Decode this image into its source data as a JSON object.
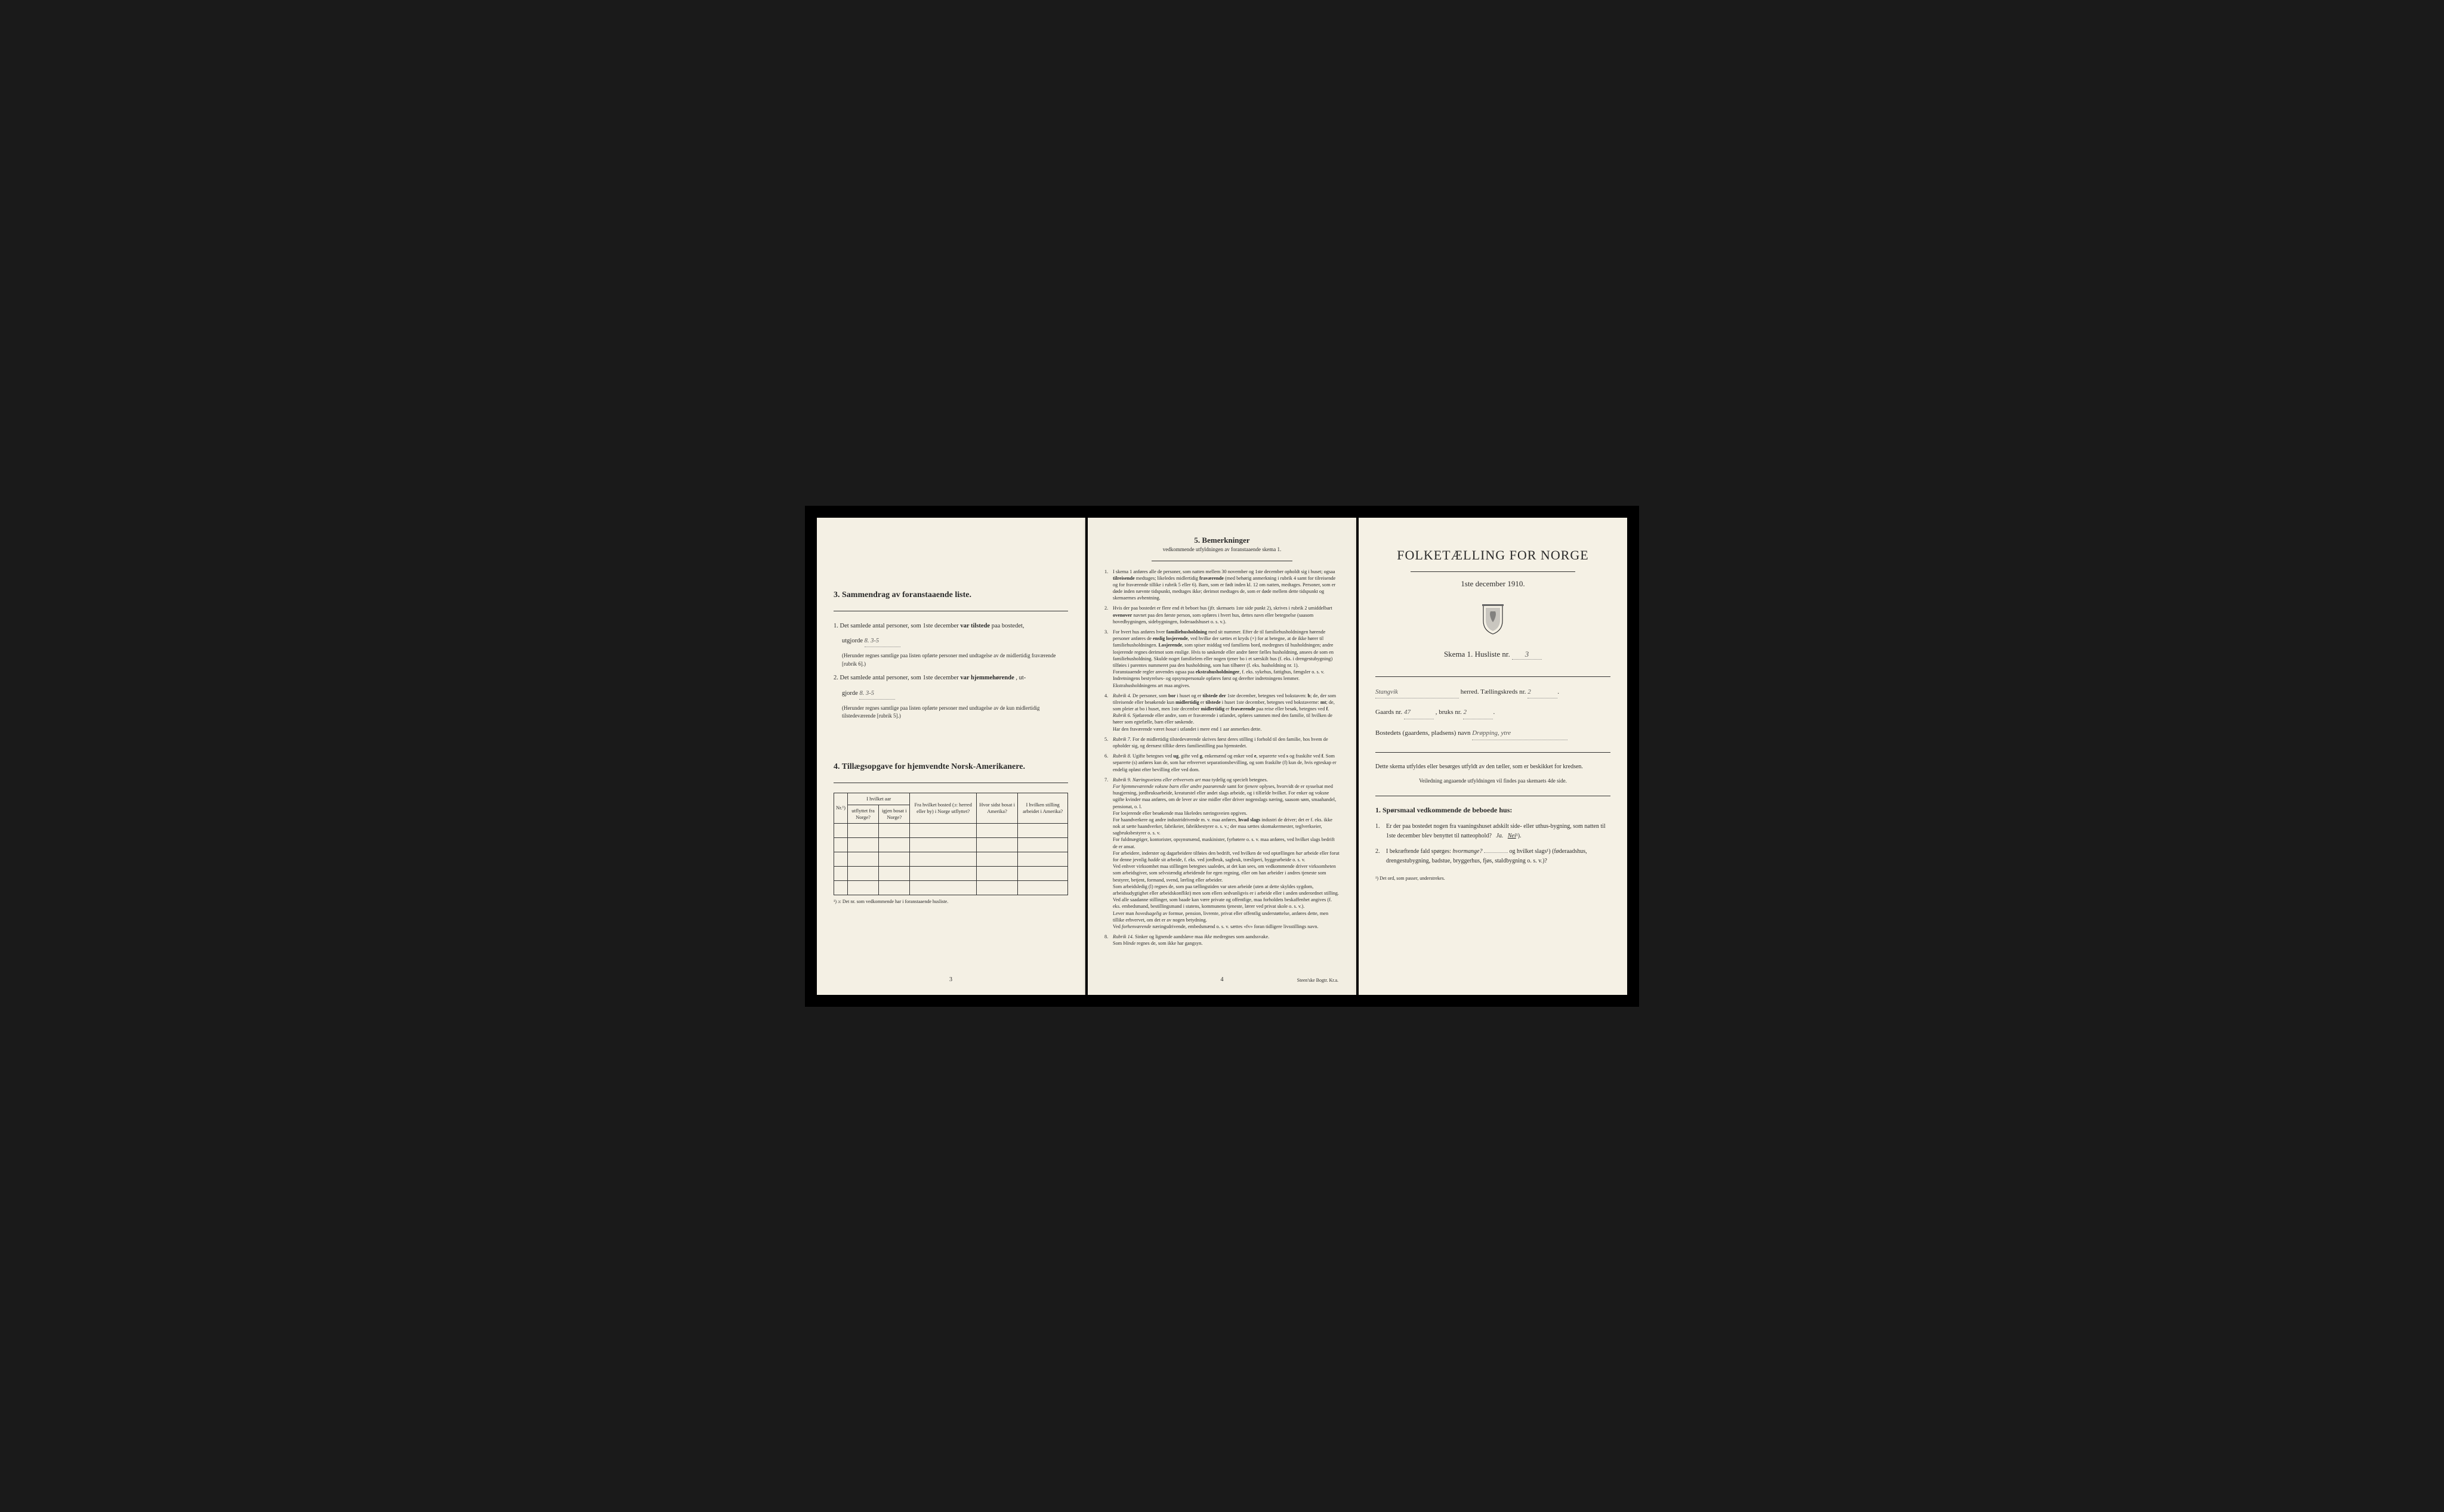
{
  "page_left": {
    "section3": {
      "title": "3.  Sammendrag av foranstaaende liste.",
      "item1_prefix": "1.  Det samlede antal personer, som 1ste december",
      "item1_bold": "var tilstede",
      "item1_suffix": "paa bostedet,",
      "item1_line2": "utgjorde",
      "item1_value": "8.  3-5",
      "item1_note": "(Herunder regnes samtlige paa listen opførte personer med undtagelse av de midlertidig fraværende [rubrik 6].)",
      "item2_prefix": "2.  Det samlede antal personer, som 1ste december",
      "item2_bold": "var hjemmehørende",
      "item2_suffix": ", ut-",
      "item2_line2": "gjorde",
      "item2_value": "8.  3-5",
      "item2_note": "(Herunder regnes samtlige paa listen opførte personer med undtagelse av de kun midlertidig tilstedeværende [rubrik 5].)"
    },
    "section4": {
      "title": "4.  Tillægsopgave for hjemvendte Norsk-Amerikanere.",
      "headers": {
        "col1": "Nr.¹)",
        "col2a": "I hvilket aar",
        "col2b": "utflyttet fra Norge?",
        "col2c": "igjen bosat i Norge?",
        "col3": "Fra hvilket bosted (ɔ: herred eller by) i Norge utflyttet?",
        "col4": "Hvor sidst bosat i Amerika?",
        "col5": "I hvilken stilling arbeidet i Amerika?"
      },
      "footnote": "¹) ɔ: Det nr. som vedkommende har i foranstaaende husliste.",
      "page_num": "3"
    }
  },
  "page_middle": {
    "title": "5.  Bemerkninger",
    "subtitle": "vedkommende utfyldningen av foranstaaende skema 1.",
    "rules": [
      {
        "n": "1.",
        "t": "I skema 1 anføres alle de personer, som natten mellem 30 november og 1ste december opholdt sig i huset; ogsaa <b>tilreisende</b> medtages; likeledes midlertidig <b>fraværende</b> (med behørig anmerkning i rubrik 4 samt for tilreisende og for fraværende tillike i rubrik 5 eller 6). Barn, som er født inden kl. 12 om natten, medtages. Personer, som er døde inden nævnte tidspunkt, medtages ikke; derimot medtages de, som er døde mellem dette tidspunkt og skemaernes avhentning."
      },
      {
        "n": "2.",
        "t": "Hvis der paa bostedet er flere end ét beboet hus (jfr. skemaets 1ste side punkt 2), skrives i rubrik 2 umiddelbart <b>ovenover</b> navnet paa den første person, som opføres i hvert hus, dettes navn eller betegnelse (saasom hovedbygningen, sidebygningen, foderaadshuset o. s. v.)."
      },
      {
        "n": "3.",
        "t": "For hvert hus anføres hver <b>familiehusholdning</b> med sit nummer. Efter de til familiehusholdningen hørende personer anføres de <b>enslig losjerende</b>, ved hvilke der sættes et kryds (×) for at betegne, at de ikke hører til familiehusholdningen. <b>Losjerende</b>, som spiser middag ved familiens bord, medregnes til husholdningen; andre losjerende regnes derimot som enslige. Hvis to søskende eller andre fører fælles husholdning, ansees de som en familiehusholdning. Skulde noget familielem eller nogen tjener bo i et særskilt hus (f. eks. i drengestubygning) tilføies i parentes nummeret paa den husholdning, som han tilhører (f. eks. husholdning nr. 1).<br>Foranstaaende regler anvendes ogsaa paa <b>ekstrahusholdninger</b>, f. eks. sykehus, fattighus, fængsler o. s. v. Indretningens bestyrelses- og opsynspersonale opføres først og derefter indretningens lemmer. Ekstrahusholdningens art maa angives."
      },
      {
        "n": "4.",
        "t": "<em>Rubrik 4.</em> De personer, som <b>bor</b> i huset og er <b>tilstede der</b> 1ste december, betegnes ved bokstaven: <b>b</b>; de, der som tilreisende eller besøkende kun <b>midlertidig</b> er <b>tilstede</b> i huset 1ste december, betegnes ved bokstaverne: <b>mt</b>; de, som pleier at bo i huset, men 1ste december <b>midlertidig</b> er <b>fraværende</b> paa reise eller besøk, betegnes ved <b>f</b>.<br><em>Rubrik 6.</em> Sjøfarende eller andre, som er fraværende i utlandet, opføres sammen med den familie, til hvilken de hører som egtefælle, barn eller søskende.<br>Har den fraværende været <em>bosat</em> i utlandet i mere end 1 aar anmerkes dette."
      },
      {
        "n": "5.",
        "t": "<em>Rubrik 7.</em> For de midlertidig tilstedeværende skrives først deres stilling i forhold til den familie, hos hvem de opholder sig, og dernæst tillike deres familiestilling paa hjemstedet."
      },
      {
        "n": "6.",
        "t": "<em>Rubrik 8.</em> Ugifte betegnes ved <b>ug</b>, gifte ved <b>g</b>, enkemænd og enker ved <b>e</b>, separerte ved <b>s</b> og fraskilte ved <b>f</b>. Som separerte (s) anføres kun de, som har erhvervet separationsbevilling, og som fraskilte (f) kun de, hvis egteskap er endelig opløst efter bevilling eller ved dom."
      },
      {
        "n": "7.",
        "t": "<em>Rubrik 9. Næringsveiens eller erhvervets art maa</em> tydelig og specielt betegnes.<br><em>For hjemmeværende voksne barn eller andre paarørende</em> samt for <em>tjenere</em> oplyses, hvorvidt de er sysselsat med husgjerning, jordbruksarbeide, kreaturstel eller andet slags arbeide, og i tilfælde hvilket. For enker og voksne ugifte kvinder maa anføres, om de lever av sine midler eller driver nogenslags næring, saasom søm, smaahandel, pensionat, o. l.<br>For losjerende eller besøkende maa likeledes næringsveien opgives.<br>For haandverkere og andre industridrivende m. v. maa anføres, <b>hvad slags</b> industri de driver; det er f. eks. ikke nok at sætte haandverker, fabrikeier, fabrikbestyrer o. s. v.; der maa sættes skomakermester, teglverkseier, sagbruksbestyrer o. s. v.<br>For fuldmægtiger, kontorister, opsynsmænd, maskinister, fyrbøtere o. s. v. maa anføres, ved hvilket slags bedrift de er ansat.<br>For arbeidere, inderster og dagarbeidere tilføies den bedrift, ved hvilken de ved optællingen <em>har</em> arbeide eller forut for denne jevnlig <em>hadde</em> sit arbeide, f. eks. ved jordbruk, sagbruk, træsliperi, byggearbeide o. s. v.<br>Ved enhver virksomhet maa stillingen betegnes saaledes, at det kan sees, om vedkommende driver virksomheten som arbeidsgiver, som selvstændig arbeidende for egen regning, eller om han arbeider i andres tjeneste som bestyrer, betjent, formand, svend, lærling eller arbeider.<br>Som arbeidsledig (l) regnes de, som paa tællingstiden var uten arbeide (uten at dette skyldes sygdom, arbeidsudygtighet eller arbeidskonflikt) men som ellers sedvanligvis er i arbeide eller i anden underordnet stilling.<br>Ved alle saadanne stillinger, som baade kan være private og offentlige, maa forholdets beskaffenhet angives (f. eks. embedsmand, bestillingsmand i statens, kommunens tjeneste, lærer ved privat skole o. s. v.).<br>Lever man <em>hovedsagelig</em> av formue, pension, livrente, privat eller offentlig understøttelse, anføres dette, men tillike erhvervet, om det er av nogen betydning.<br>Ved <em>forhenværende</em> næringsdrivende, embedsmænd o. s. v. sættes «fv» foran tidligere livsstillings navn."
      },
      {
        "n": "8.",
        "t": "<em>Rubrik 14.</em> Sinker og lignende aandsløve maa <em>ikke</em> medregnes som aandssvake.<br>Som <em>blinde</em> regnes de, som ikke har gangsyn."
      }
    ],
    "page_num": "4",
    "printer": "Steen'ske Bogtr. Kr.a."
  },
  "page_right": {
    "main_title": "FOLKETÆLLING FOR NORGE",
    "sub_title": "1ste december 1910.",
    "skema_label": "Skema 1.  Husliste nr.",
    "skema_value": "3",
    "herred_value": "Stangvik",
    "herred_label": "herred.  Tællingskreds nr.",
    "kreds_value": "2",
    "gaard_label": "Gaards nr.",
    "gaard_value": "47",
    "bruks_label": ", bruks nr.",
    "bruks_value": "2",
    "bosted_label": "Bostedets (gaardens, pladsens) navn",
    "bosted_value": "Drøpping, ytre",
    "instruction": "Dette skema utfyldes eller besørges utfyldt av den tæller, som er beskikket for kredsen.",
    "instruction_sub": "Veiledning angaaende utfyldningen vil findes paa skemaets 4de side.",
    "q_header": "1. Spørsmaal vedkommende de beboede hus:",
    "q1_num": "1.",
    "q1_text": "Er der paa bostedet nogen fra vaaningshuset adskilt side- eller uthus-bygning, som natten til 1ste december blev benyttet til natteophold?",
    "q1_ja": "Ja.",
    "q1_nei": "Nei",
    "q1_sup": "¹).",
    "q2_num": "2.",
    "q2_text_a": "I bekræftende fald spørges:",
    "q2_text_b": "hvormange?",
    "q2_text_c": "og hvilket slags",
    "q2_sup": "¹)",
    "q2_paren": "(føderaadshus, drengestubygning, badstue, bryggerhus, fjøs, staldbygning o. s. v.)?",
    "footnote": "¹) Det ord, som passer, understrekes."
  },
  "colors": {
    "page_bg": "#f4f0e4",
    "text": "#2a2a2a",
    "border": "#333333",
    "backdrop": "#1a1a1a"
  }
}
